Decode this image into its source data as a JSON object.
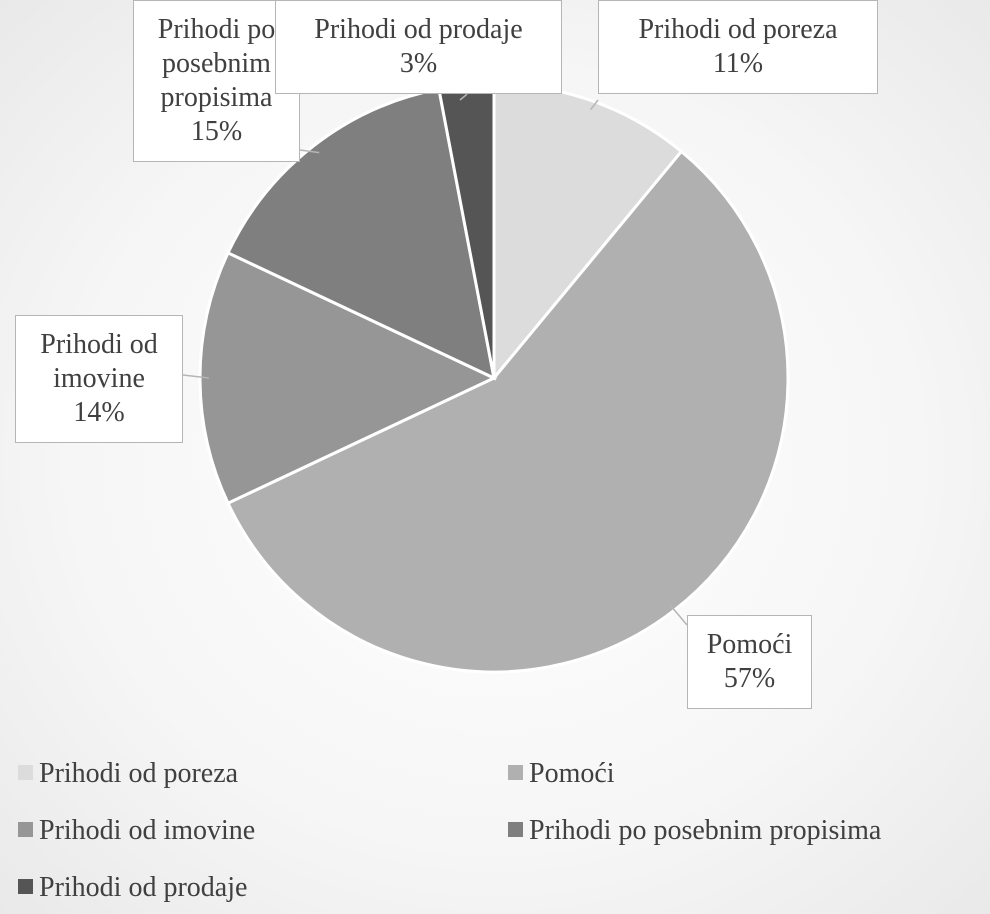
{
  "chart_data": {
    "type": "pie",
    "categories": [
      "Prihodi od poreza",
      "Pomoći",
      "Prihodi od imovine",
      "Prihodi po posebnim propisima",
      "Prihodi od prodaje"
    ],
    "values": [
      11,
      57,
      14,
      15,
      3
    ],
    "value_labels": [
      "11%",
      "57%",
      "14%",
      "15%",
      "3%"
    ],
    "colors": [
      "#dcdcdc",
      "#b0b0b0",
      "#969696",
      "#7f7f7f",
      "#555555"
    ],
    "legend": "bottom"
  }
}
